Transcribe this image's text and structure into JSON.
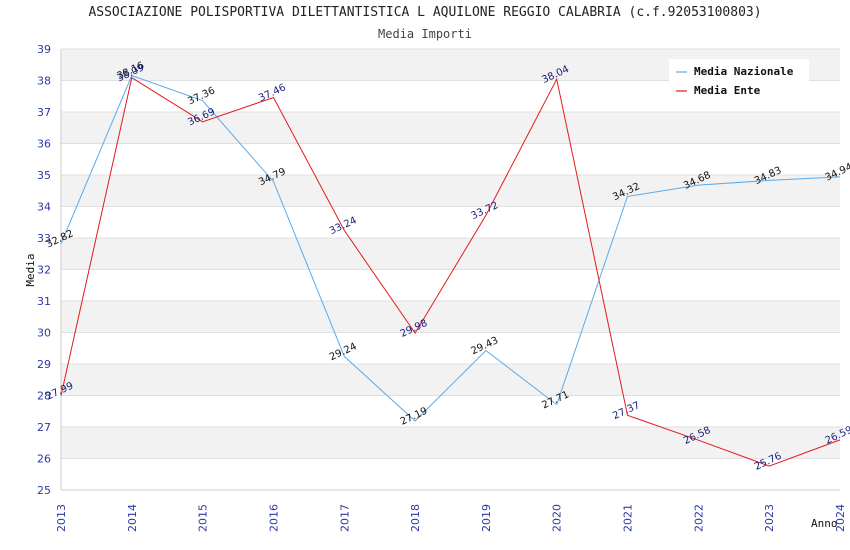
{
  "title": "ASSOCIAZIONE POLISPORTIVA DILETTANTISTICA L AQUILONE REGGIO CALABRIA (c.f.92053100803)",
  "subtitle": "Media Importi",
  "chart_data": {
    "type": "line",
    "title": "ASSOCIAZIONE POLISPORTIVA DILETTANTISTICA L AQUILONE REGGIO CALABRIA (c.f.92053100803)",
    "subtitle": "Media Importi",
    "xlabel": "Anno",
    "ylabel": "Media",
    "x": [
      "2013",
      "2014",
      "2015",
      "2016",
      "2017",
      "2018",
      "2019",
      "2020",
      "2021",
      "2022",
      "2023",
      "2024"
    ],
    "ylim": [
      25,
      39
    ],
    "yticks": [
      25,
      26,
      27,
      28,
      29,
      30,
      31,
      32,
      33,
      34,
      35,
      36,
      37,
      38,
      39
    ],
    "grid": true,
    "legend_position": "top-right",
    "series": [
      {
        "name": "Media Nazionale",
        "color": "#5aaaeb",
        "values": [
          32.82,
          38.16,
          37.36,
          34.79,
          29.24,
          27.19,
          29.43,
          27.71,
          34.32,
          34.68,
          34.83,
          34.94
        ],
        "labels": [
          "32.82",
          "38.16",
          "37.36",
          "34.79",
          "29.24",
          "27.19",
          "29.43",
          "27.71",
          "34.32",
          "34.68",
          "34.83",
          "34.94"
        ]
      },
      {
        "name": "Media Ente",
        "color": "#e31a1c",
        "values": [
          27.99,
          38.09,
          36.69,
          37.46,
          33.24,
          29.98,
          33.72,
          38.04,
          27.37,
          26.58,
          25.76,
          26.59
        ],
        "labels": [
          "27.99",
          "38.09",
          "36.69",
          "37.46",
          "33.24",
          "29.98",
          "33.72",
          "38.04",
          "27.37",
          "26.58",
          "25.76",
          "26.59"
        ]
      }
    ]
  }
}
